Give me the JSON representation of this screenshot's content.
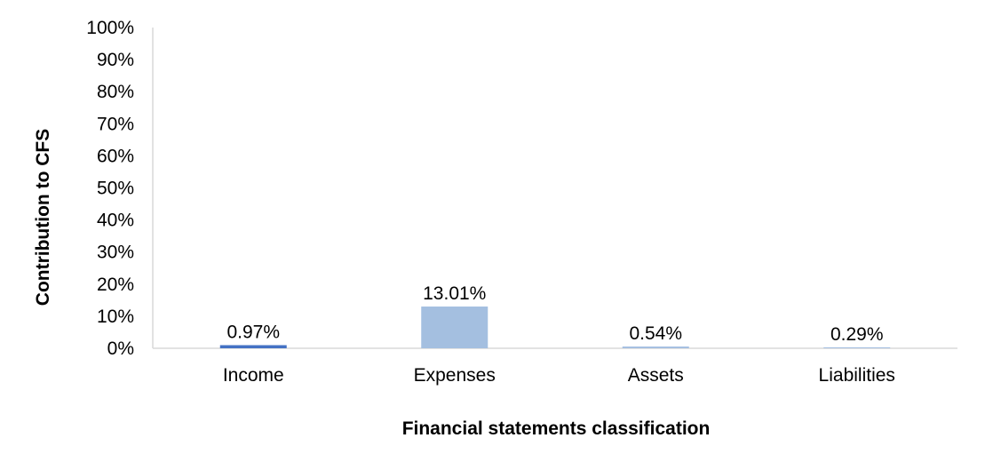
{
  "chart_data": {
    "type": "bar",
    "categories": [
      "Income",
      "Expenses",
      "Assets",
      "Liabilities"
    ],
    "values": [
      0.97,
      13.01,
      0.54,
      0.29
    ],
    "data_labels": [
      "0.97%",
      "13.01%",
      "0.54%",
      "0.29%"
    ],
    "title": "",
    "xlabel": "Financial statements classification",
    "ylabel": "Contribution to CFS",
    "ylim": [
      0,
      100
    ],
    "y_ticks": [
      "0%",
      "10%",
      "20%",
      "30%",
      "40%",
      "50%",
      "60%",
      "70%",
      "80%",
      "90%",
      "100%"
    ],
    "grid": false,
    "legend": "none",
    "bar_colors": [
      "#4472c4",
      "#a4bfe0",
      "#a4bfe0",
      "#a4bfe0"
    ],
    "axis_color": "#d9d9d9"
  }
}
